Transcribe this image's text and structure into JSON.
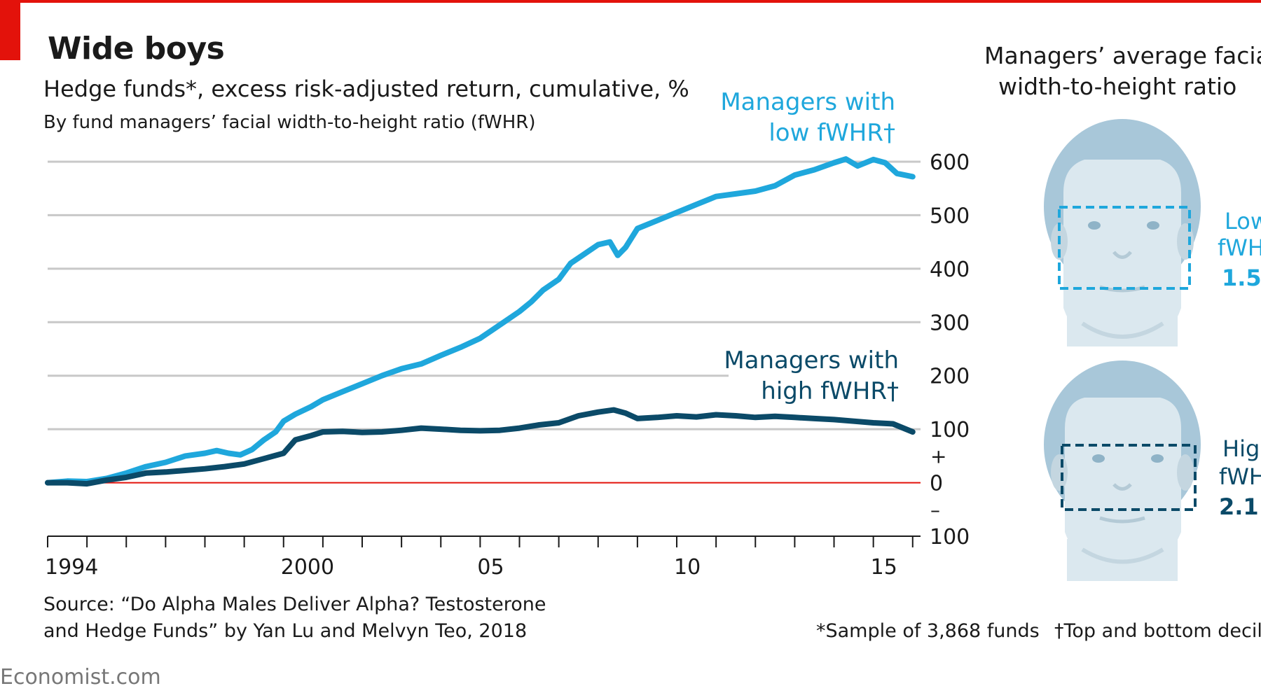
{
  "header": {
    "title": "Wide boys",
    "subtitle": "Hedge funds*, excess risk-adjusted return, cumulative, %",
    "subtitle2": "By fund managers’ facial width-to-height ratio (fWHR)"
  },
  "footer": {
    "source_line1": "Source: “Do Alpha Males Deliver Alpha? Testosterone",
    "source_line2": "and Hedge Funds” by Yan Lu and Melvyn Teo, 2018",
    "note1": "*Sample of 3,868 funds",
    "note2": "†Top and bottom decil",
    "brand": "Economist.com"
  },
  "faces_panel": {
    "title_line1": "Managers’ average facial",
    "title_line2": "width-to-height ratio",
    "low": {
      "line1": "Low",
      "line2": "fWH",
      "line3": "1.5"
    },
    "high": {
      "line1": "Hig",
      "line2": "fWH",
      "line3": "2.1"
    }
  },
  "colors": {
    "low_series": "#1fa7dc",
    "high_series": "#0b4a68",
    "zero_line": "#e3120b",
    "gridline": "#c8c8c8",
    "face_light": "#dbe8ef",
    "hair": "#a8c7d9"
  },
  "chart_data": {
    "type": "line",
    "title": "Wide boys",
    "ylabel": "Hedge funds*, excess risk-adjusted return, cumulative, %",
    "ylim": [
      -100,
      600
    ],
    "xlim": [
      1994,
      2016.2
    ],
    "yticks": [
      600,
      500,
      400,
      300,
      200,
      100,
      0,
      -100
    ],
    "ytick_labels": [
      "600",
      "500",
      "400",
      "300",
      "200",
      "100",
      "0",
      "100"
    ],
    "sign_labels": {
      "plus": "+",
      "minus": "–"
    },
    "xticks": [
      1994,
      2000,
      2005,
      2010,
      2015
    ],
    "xtick_labels": [
      "1994",
      "2000",
      "05",
      "10",
      "15"
    ],
    "grid": true,
    "series": [
      {
        "name": "Managers with low fWHR†",
        "label_lines": [
          "Managers with",
          "low fWHR†"
        ],
        "color": "#1fa7dc",
        "points": [
          [
            1994.0,
            0
          ],
          [
            1994.5,
            3
          ],
          [
            1995.0,
            2
          ],
          [
            1995.5,
            8
          ],
          [
            1996.0,
            18
          ],
          [
            1996.5,
            30
          ],
          [
            1997.0,
            38
          ],
          [
            1997.5,
            50
          ],
          [
            1998.0,
            55
          ],
          [
            1998.3,
            60
          ],
          [
            1998.6,
            55
          ],
          [
            1998.9,
            52
          ],
          [
            1999.2,
            62
          ],
          [
            1999.5,
            80
          ],
          [
            1999.8,
            95
          ],
          [
            2000.0,
            115
          ],
          [
            2000.3,
            128
          ],
          [
            2000.7,
            142
          ],
          [
            2001.0,
            155
          ],
          [
            2001.5,
            170
          ],
          [
            2002.0,
            185
          ],
          [
            2002.5,
            200
          ],
          [
            2003.0,
            213
          ],
          [
            2003.5,
            222
          ],
          [
            2004.0,
            238
          ],
          [
            2004.5,
            253
          ],
          [
            2005.0,
            270
          ],
          [
            2005.3,
            285
          ],
          [
            2005.6,
            300
          ],
          [
            2006.0,
            320
          ],
          [
            2006.3,
            338
          ],
          [
            2006.6,
            360
          ],
          [
            2007.0,
            380
          ],
          [
            2007.3,
            410
          ],
          [
            2007.6,
            425
          ],
          [
            2008.0,
            445
          ],
          [
            2008.3,
            450
          ],
          [
            2008.5,
            425
          ],
          [
            2008.7,
            440
          ],
          [
            2009.0,
            475
          ],
          [
            2009.5,
            490
          ],
          [
            2010.0,
            505
          ],
          [
            2010.5,
            520
          ],
          [
            2011.0,
            535
          ],
          [
            2011.5,
            540
          ],
          [
            2012.0,
            545
          ],
          [
            2012.5,
            555
          ],
          [
            2013.0,
            575
          ],
          [
            2013.5,
            585
          ],
          [
            2014.0,
            598
          ],
          [
            2014.3,
            605
          ],
          [
            2014.6,
            592
          ],
          [
            2015.0,
            604
          ],
          [
            2015.3,
            598
          ],
          [
            2015.6,
            578
          ],
          [
            2016.0,
            572
          ]
        ]
      },
      {
        "name": "Managers with high fWHR†",
        "label_lines": [
          "Managers with",
          "high fWHR†"
        ],
        "color": "#0b4a68",
        "points": [
          [
            1994.0,
            0
          ],
          [
            1994.5,
            0
          ],
          [
            1995.0,
            -2
          ],
          [
            1995.5,
            5
          ],
          [
            1996.0,
            10
          ],
          [
            1996.5,
            18
          ],
          [
            1997.0,
            20
          ],
          [
            1997.5,
            23
          ],
          [
            1998.0,
            26
          ],
          [
            1998.5,
            30
          ],
          [
            1999.0,
            35
          ],
          [
            1999.5,
            45
          ],
          [
            2000.0,
            55
          ],
          [
            2000.3,
            80
          ],
          [
            2000.7,
            88
          ],
          [
            2001.0,
            95
          ],
          [
            2001.5,
            96
          ],
          [
            2002.0,
            94
          ],
          [
            2002.5,
            95
          ],
          [
            2003.0,
            98
          ],
          [
            2003.5,
            102
          ],
          [
            2004.0,
            100
          ],
          [
            2004.5,
            98
          ],
          [
            2005.0,
            97
          ],
          [
            2005.5,
            98
          ],
          [
            2006.0,
            102
          ],
          [
            2006.5,
            108
          ],
          [
            2007.0,
            112
          ],
          [
            2007.5,
            125
          ],
          [
            2008.0,
            132
          ],
          [
            2008.4,
            136
          ],
          [
            2008.7,
            130
          ],
          [
            2009.0,
            120
          ],
          [
            2009.5,
            122
          ],
          [
            2010.0,
            125
          ],
          [
            2010.5,
            123
          ],
          [
            2011.0,
            127
          ],
          [
            2011.5,
            125
          ],
          [
            2012.0,
            122
          ],
          [
            2012.5,
            124
          ],
          [
            2013.0,
            122
          ],
          [
            2013.5,
            120
          ],
          [
            2014.0,
            118
          ],
          [
            2014.5,
            115
          ],
          [
            2015.0,
            112
          ],
          [
            2015.5,
            110
          ],
          [
            2016.0,
            95
          ]
        ]
      }
    ]
  }
}
